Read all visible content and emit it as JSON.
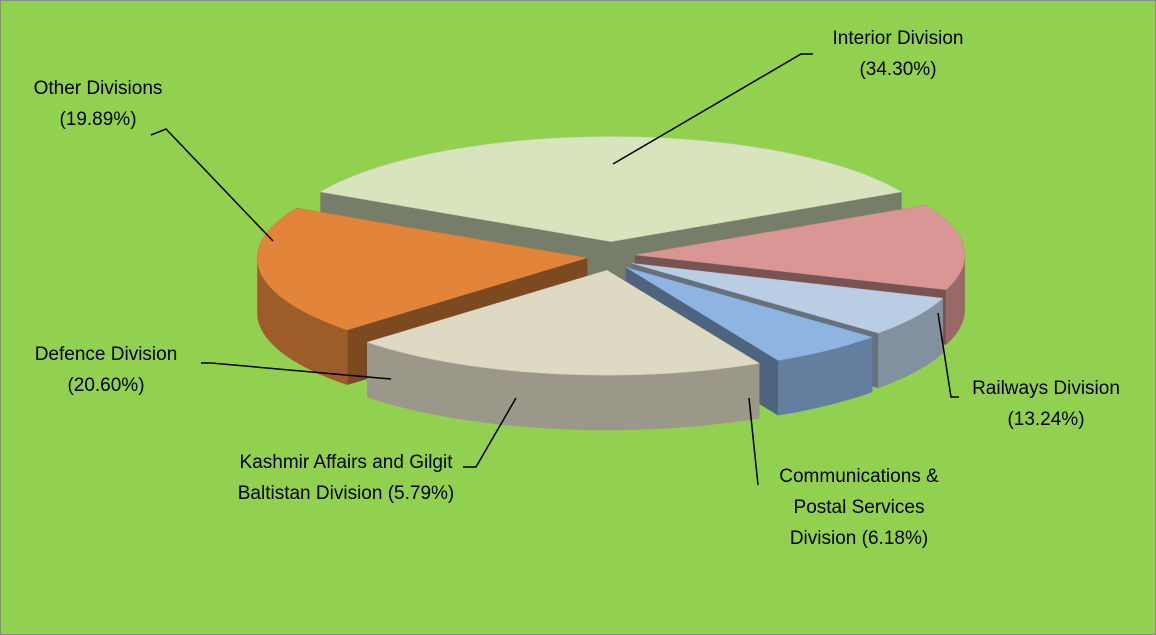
{
  "chart_data": {
    "type": "pie3d",
    "categories": [
      "Interior Division",
      "Railways Division",
      "Communications & Postal Services Division",
      "Kashmir Affairs and Gilgit Baltistan Division",
      "Defence Division",
      "Other Divisions"
    ],
    "values": [
      34.3,
      13.24,
      6.18,
      5.79,
      20.6,
      19.89
    ],
    "value_labels": [
      "(34.30%)",
      "(13.24%)",
      "(6.18%)",
      "(5.79%)",
      "(20.60%)",
      "(19.89%)"
    ],
    "colors": [
      "#d7e4bd",
      "#d99694",
      "#b9cde5",
      "#8eb4e3",
      "#ddd9c3",
      "#e2843a"
    ],
    "background": "#92d050"
  }
}
